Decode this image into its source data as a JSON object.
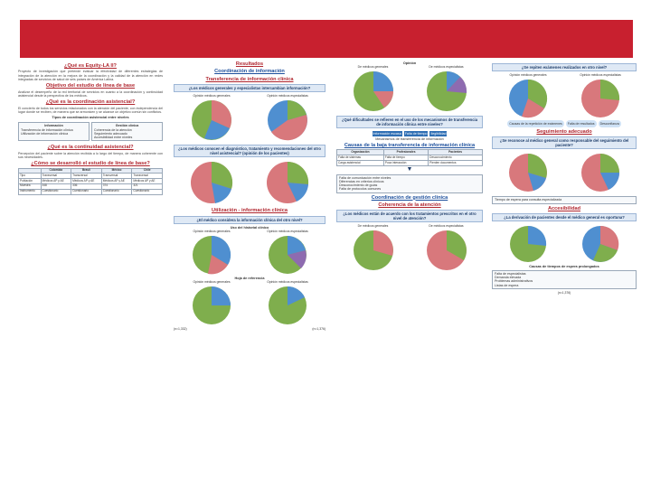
{
  "colors": {
    "banner": "#c8202f",
    "heading": "#b0262f",
    "heading_blue": "#1c4f9c",
    "pie_green": "#7fae4d",
    "pie_red": "#d8787c",
    "pie_blue": "#4f8fd0",
    "pie_purple": "#8e6bb0",
    "pie_gray": "#b9b9b9"
  },
  "col1": {
    "h1": "¿Qué es Equity-LA II?",
    "p1": "Proyecto de investigación que pretende evaluar la efectividad de diferentes estrategias de integración de la atención en la mejora de la coordinación y la calidad de la atención en redes integradas de servicios de salud de seis países de América Latina.",
    "h2": "Objetivo del estudio de línea de base",
    "p2": "Analizar el desempeño de la red territorial de servicios en cuanto a la coordinación y continuidad asistencial desde la perspectiva de los médicos.",
    "h3": "¿Qué es la coordinación asistencial?",
    "p3": "El concierto de todos los servicios relacionados con la atención del paciente, con independencia del lugar donde se reciben, de manera que se armonicen y se alcance un objetivo común sin conflictos.",
    "types_title": "Tipos de coordinación asistencial entre niveles",
    "type_a": "Información",
    "type_a_items": [
      "Transferencia de información clínica",
      "Utilización de información clínica"
    ],
    "type_b": "Gestión clínica",
    "type_b_items": [
      "Coherencia de la atención",
      "Seguimiento adecuado",
      "Accesibilidad entre niveles"
    ],
    "h4": "¿Qué es la continuidad asistencial?",
    "p4": "Percepción del paciente sobre la atención recibida a lo largo del tiempo, de manera coherente con sus necesidades.",
    "h5": "¿Cómo se desarrolló el estudio de línea de base?",
    "table_headers": [
      "",
      "Colombia",
      "Brasil",
      "México",
      "Chile"
    ],
    "table_rows": [
      [
        "Tipo",
        "Transversal",
        "Transversal",
        "Transversal",
        "Transversal"
      ],
      [
        "Población",
        "Médicos AP y AE",
        "Médicos AP y AE",
        "Médicos AP y AE",
        "Médicos AP y AE"
      ],
      [
        "Muestra",
        "348",
        "336",
        "374",
        "321"
      ],
      [
        "Instrumento",
        "Cuestionario",
        "Cuestionario",
        "Cuestionario",
        "Cuestionario"
      ]
    ]
  },
  "col2": {
    "h0": "Resultados",
    "h1": "Coordinación de información",
    "sub1": "Transferencia de información clínica",
    "q1": "¿Los médicos generales y especialistas intercambian información?",
    "pie_a": "Opinión médicos generales",
    "pie_b": "Opinión médicos especialistas",
    "q2": "¿Los médicos conocen el diagnóstico, tratamiento y recomendaciones del otro nivel asistencial?",
    "q2b": "(opinión de los pacientes)",
    "sub2": "Utilización - información clínica",
    "q3": "¿El médico considera la información clínica del otro nivel?",
    "sub3": "Uso del historial clínico",
    "sub4": "Hoja de referencia",
    "n1": "(n=1,332)",
    "n2": "(n=1,376)"
  },
  "col3": {
    "top": "Opinión",
    "pie_a": "De médicos generales",
    "pie_b": "De médicos especialistas",
    "q1": "¿Qué dificultades se refieren en el uso de los mecanismos de transferencia de información clínica entre niveles?",
    "bb": [
      "Información escasa",
      "Falta de tiempo",
      "Ilegibilidad"
    ],
    "label1": "Mecanismos de transferencia de información",
    "h_table": "Causas de la baja transferencia de información clínica",
    "tbl_headers": [
      "Organización",
      "Profesionales",
      "Pacientes"
    ],
    "tbl_rows": [
      [
        "Falta de sistemas",
        "Falta de tiempo",
        "Desconocimiento"
      ],
      [
        "Carga asistencial",
        "Poca interacción",
        "Pierden documentos"
      ]
    ],
    "h_gestion": "Coordinación de gestión clínica",
    "sub": "Coherencia de la atención",
    "q2": "¿Los médicos están de acuerdo con los tratamientos prescritos en el otro nivel de atención?",
    "bullets": [
      "Falta de comunicación entre niveles",
      "Diferencias en criterios clínicos",
      "Desconocimiento de guías",
      "Falta de protocolos comunes"
    ],
    "pie_c": "De médicos generales",
    "pie_d": "De médicos especialistas"
  },
  "col4": {
    "q1": "¿Se repiten exámenes realizados en otro nivel?",
    "pie_a": "Opinión médicos generales",
    "pie_b": "Opinión médicos especialistas",
    "cloud1": "Causas de la repetición de exámenes",
    "cloud2": "Falta de resultados",
    "cloud3": "Desconfianza",
    "h1": "Seguimiento adecuado",
    "q2": "¿Se reconoce al médico general como responsable del seguimiento del paciente?",
    "h2": "Accesibilidad",
    "q3": "¿Los médicos de la atención especializada reciben al paciente en un tiempo adecuado?",
    "q4": "¿La derivación de pacientes desde el médico general es oportuna?",
    "box": "Tiempo de espera para consulta especializada",
    "list_title": "Causas de tiempos de espera prolongados",
    "list": [
      "Falta de especialistas",
      "Demanda elevada",
      "Problemas administrativos",
      "Listas de espera"
    ],
    "n": "(n=1,376)"
  }
}
